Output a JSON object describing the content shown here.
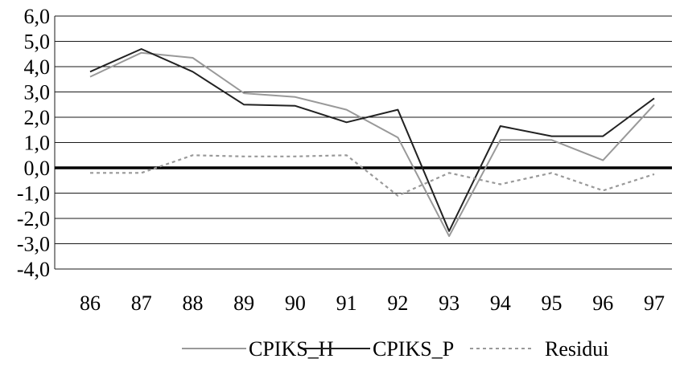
{
  "chart_data": {
    "type": "line",
    "title": "",
    "xlabel": "",
    "ylabel": "",
    "categories": [
      "86",
      "87",
      "88",
      "89",
      "90",
      "91",
      "92",
      "93",
      "94",
      "95",
      "96",
      "97"
    ],
    "ylim": [
      -4,
      6
    ],
    "yticks": [
      "-4,0",
      "-3,0",
      "-2,0",
      "-1,0",
      "0,0",
      "1,0",
      "2,0",
      "3,0",
      "4,0",
      "5,0",
      "6,0"
    ],
    "grid": true,
    "legend_position": "bottom",
    "series": [
      {
        "name": "CPIKS_H",
        "color": "#999999",
        "style": "solid",
        "values": [
          3.6,
          4.55,
          4.35,
          2.95,
          2.8,
          2.3,
          1.2,
          -2.7,
          1.1,
          1.1,
          0.3,
          2.5
        ]
      },
      {
        "name": "CPIKS_P",
        "color": "#222222",
        "style": "solid",
        "values": [
          3.8,
          4.7,
          3.8,
          2.5,
          2.45,
          1.8,
          2.3,
          -2.5,
          1.65,
          1.25,
          1.25,
          2.75
        ]
      },
      {
        "name": "Residui",
        "color": "#999999",
        "style": "dotted",
        "values": [
          -0.2,
          -0.2,
          0.5,
          0.45,
          0.45,
          0.5,
          -1.1,
          -0.2,
          -0.65,
          -0.2,
          -0.9,
          -0.25
        ]
      }
    ]
  }
}
